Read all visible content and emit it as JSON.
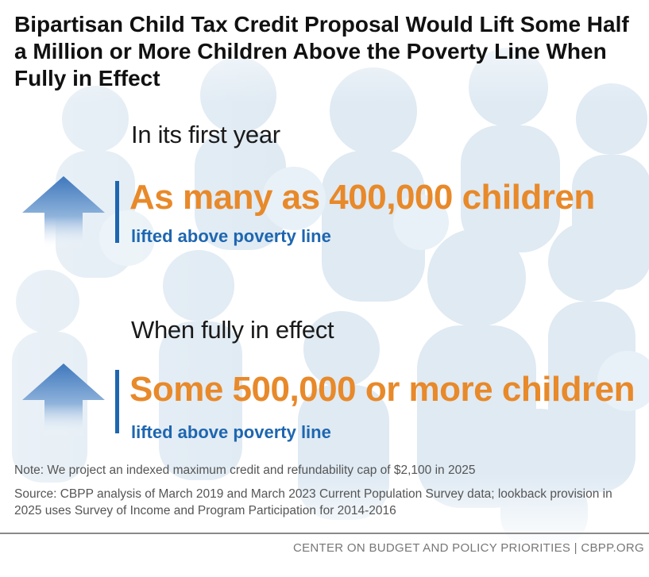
{
  "title": "Bipartisan Child Tax Credit Proposal Would Lift Some Half a Million or More Children Above the Poverty Line When Fully in Effect",
  "sections": [
    {
      "label": "In its first year",
      "headline": "As many as 400,000 children",
      "subline": "lifted above poverty line",
      "icon": "up-arrow-icon"
    },
    {
      "label": "When fully in effect",
      "headline": "Some 500,000 or more children",
      "subline": "lifted above poverty line",
      "icon": "up-arrow-icon"
    }
  ],
  "note": "Note: We project an indexed maximum credit and refundability cap of $2,100 in 2025",
  "source": "Source: CBPP analysis of March 2019 and March 2023 Current Population Survey data; lookback provision in 2025 uses Survey of Income and Program Participation for 2014-2016",
  "footer": "CENTER ON BUDGET AND POLICY PRIORITIES | CBPP.ORG",
  "colors": {
    "headline": "#e8892a",
    "subline": "#1e66b0",
    "arrow_top": "#4a7fc0",
    "background_figures": "#dde9f2"
  }
}
